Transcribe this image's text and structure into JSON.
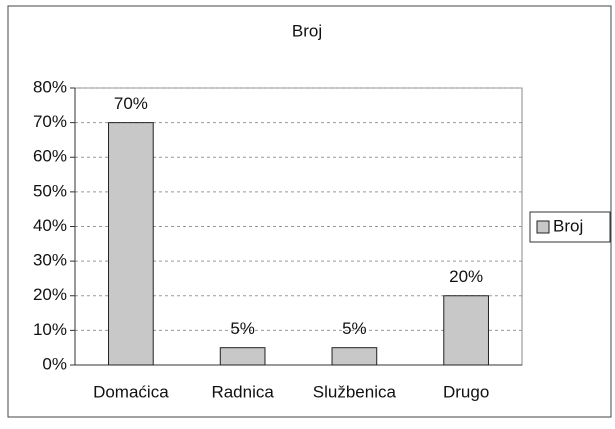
{
  "chart_data": {
    "type": "bar",
    "title": "Broj",
    "categories": [
      "Domaćica",
      "Radnica",
      "Službenica",
      "Drugo"
    ],
    "series": [
      {
        "name": "Broj",
        "color": "#c8c8c8",
        "values": [
          70,
          5,
          5,
          20
        ],
        "value_labels": [
          "70%",
          "5%",
          "5%",
          "20%"
        ]
      }
    ],
    "ylim": [
      0,
      80
    ],
    "yticks": [
      {
        "value": 0,
        "label": "0%"
      },
      {
        "value": 10,
        "label": "10%"
      },
      {
        "value": 20,
        "label": "20%"
      },
      {
        "value": 30,
        "label": "30%"
      },
      {
        "value": 40,
        "label": "40%"
      },
      {
        "value": 50,
        "label": "50%"
      },
      {
        "value": 60,
        "label": "60%"
      },
      {
        "value": 70,
        "label": "70%"
      },
      {
        "value": 80,
        "label": "80%"
      }
    ],
    "grid": true,
    "legend": "right"
  }
}
